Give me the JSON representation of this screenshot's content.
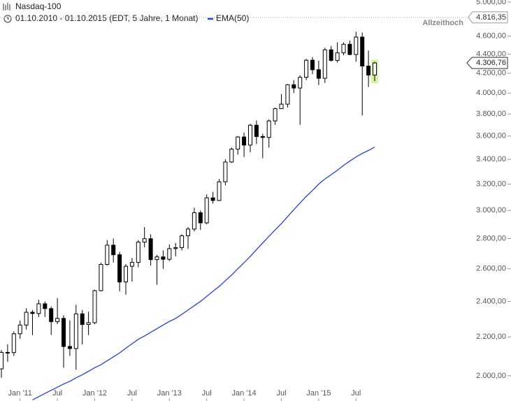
{
  "chart_data": {
    "type": "candlestick",
    "title": "Nasdaq-100",
    "subtitle": "01.10.2010 - 01.10.2015 (EDT, 5 Jahre, 1 Monat)",
    "log_scale": true,
    "up_color": "#ffffff",
    "down_color": "#000000",
    "categories": [
      null,
      null,
      null,
      "Jan '11",
      null,
      null,
      null,
      null,
      null,
      "Jul",
      null,
      null,
      null,
      null,
      null,
      "Jan '12",
      null,
      null,
      null,
      null,
      null,
      "Jul",
      null,
      null,
      null,
      null,
      null,
      "Jan '13",
      null,
      null,
      null,
      null,
      null,
      "Jul",
      null,
      null,
      null,
      null,
      null,
      "Jan '14",
      null,
      null,
      null,
      null,
      null,
      "Jul",
      null,
      null,
      null,
      null,
      null,
      "Jan '15",
      null,
      null,
      null,
      null,
      null,
      "Jul",
      null,
      null,
      null
    ],
    "open": [
      2034,
      2118,
      2117,
      2217,
      2265,
      2337,
      2330,
      2386,
      2358,
      2284,
      2302,
      2149,
      2138,
      2328,
      2268,
      2278,
      2464,
      2628,
      2755,
      2691,
      2517,
      2616,
      2641,
      2776,
      2799,
      2659,
      2677,
      2661,
      2732,
      2738,
      2819,
      2866,
      2983,
      2910,
      3094,
      3074,
      3218,
      3378,
      3487,
      3592,
      3521,
      3697,
      3596,
      3588,
      3736,
      3850,
      3893,
      4083,
      4050,
      4158,
      4336,
      4236,
      4148,
      4448,
      4334,
      4415,
      4509,
      4397,
      4589,
      4274,
      4181
    ],
    "high": [
      2130,
      2160,
      2230,
      2290,
      2360,
      2350,
      2410,
      2400,
      2370,
      2420,
      2320,
      2290,
      2380,
      2350,
      2340,
      2470,
      2640,
      2790,
      2800,
      2710,
      2630,
      2670,
      2790,
      2880,
      2830,
      2690,
      2720,
      2760,
      2770,
      2830,
      2880,
      3020,
      3000,
      3120,
      3140,
      3240,
      3400,
      3500,
      3600,
      3630,
      3710,
      3740,
      3620,
      3750,
      3860,
      3990,
      4090,
      4130,
      4180,
      4350,
      4370,
      4330,
      4470,
      4490,
      4530,
      4530,
      4550,
      4650,
      4640,
      4440,
      4320
    ],
    "low": [
      1990,
      2070,
      2100,
      2190,
      2240,
      2210,
      2310,
      2310,
      2210,
      2270,
      2040,
      2100,
      2030,
      2160,
      2210,
      2270,
      2460,
      2620,
      2640,
      2460,
      2440,
      2520,
      2610,
      2740,
      2620,
      2500,
      2600,
      2650,
      2680,
      2720,
      2730,
      2850,
      2860,
      2900,
      3050,
      3070,
      3190,
      3370,
      3440,
      3420,
      3460,
      3530,
      3410,
      3500,
      3700,
      3850,
      3860,
      4000,
      3700,
      4130,
      4190,
      4080,
      4100,
      4320,
      4310,
      4390,
      4390,
      4320,
      3787,
      4060,
      4120
    ],
    "close": [
      2118,
      2117,
      2217,
      2265,
      2337,
      2330,
      2386,
      2358,
      2284,
      2302,
      2149,
      2138,
      2328,
      2268,
      2278,
      2464,
      2628,
      2755,
      2691,
      2517,
      2616,
      2641,
      2776,
      2799,
      2659,
      2677,
      2661,
      2732,
      2738,
      2819,
      2866,
      2983,
      2910,
      3094,
      3074,
      3218,
      3378,
      3487,
      3592,
      3521,
      3697,
      3596,
      3588,
      3736,
      3850,
      3893,
      4083,
      4050,
      4158,
      4336,
      4236,
      4148,
      4448,
      4334,
      4415,
      4509,
      4397,
      4589,
      4274,
      4181,
      4306.76
    ],
    "last_label": "4.306,76",
    "ema": {
      "name": "EMA(50)",
      "color": "#2440d8",
      "values": [
        null,
        null,
        null,
        null,
        null,
        1885,
        1900,
        1915,
        1930,
        1945,
        1960,
        1973,
        1990,
        2005,
        2022,
        2040,
        2055,
        2075,
        2095,
        2115,
        2140,
        2163,
        2187,
        2205,
        2225,
        2245,
        2265,
        2285,
        2302,
        2325,
        2350,
        2375,
        2400,
        2430,
        2460,
        2490,
        2525,
        2560,
        2600,
        2639,
        2680,
        2725,
        2770,
        2815,
        2860,
        2904,
        2955,
        3005,
        3055,
        3105,
        3150,
        3200,
        3240,
        3275,
        3310,
        3350,
        3386,
        3420,
        3450,
        3475,
        3504
      ]
    },
    "all_time_high": {
      "label": "Allzeithoch",
      "value": 4816.35,
      "value_label": "4.816,35"
    },
    "ylim": [
      1880,
      5000
    ],
    "yticks": [
      {
        "value": 2000,
        "label": "2.000,00"
      },
      {
        "value": 2200,
        "label": "2.200,00"
      },
      {
        "value": 2400,
        "label": "2.400,00"
      },
      {
        "value": 2600,
        "label": "2.600,00"
      },
      {
        "value": 2800,
        "label": "2.800,00"
      },
      {
        "value": 3000,
        "label": "3.000,00"
      },
      {
        "value": 3200,
        "label": "3.200,00"
      },
      {
        "value": 3400,
        "label": "3.400,00"
      },
      {
        "value": 3600,
        "label": "3.600,00"
      },
      {
        "value": 3800,
        "label": "3.800,00"
      },
      {
        "value": 4000,
        "label": "4.000,00"
      },
      {
        "value": 4200,
        "label": "4.200,00"
      },
      {
        "value": 4400,
        "label": "4.400,00"
      },
      {
        "value": 4600,
        "label": "4.600,00"
      },
      {
        "value": 5000,
        "label": "5.000,00"
      }
    ]
  }
}
